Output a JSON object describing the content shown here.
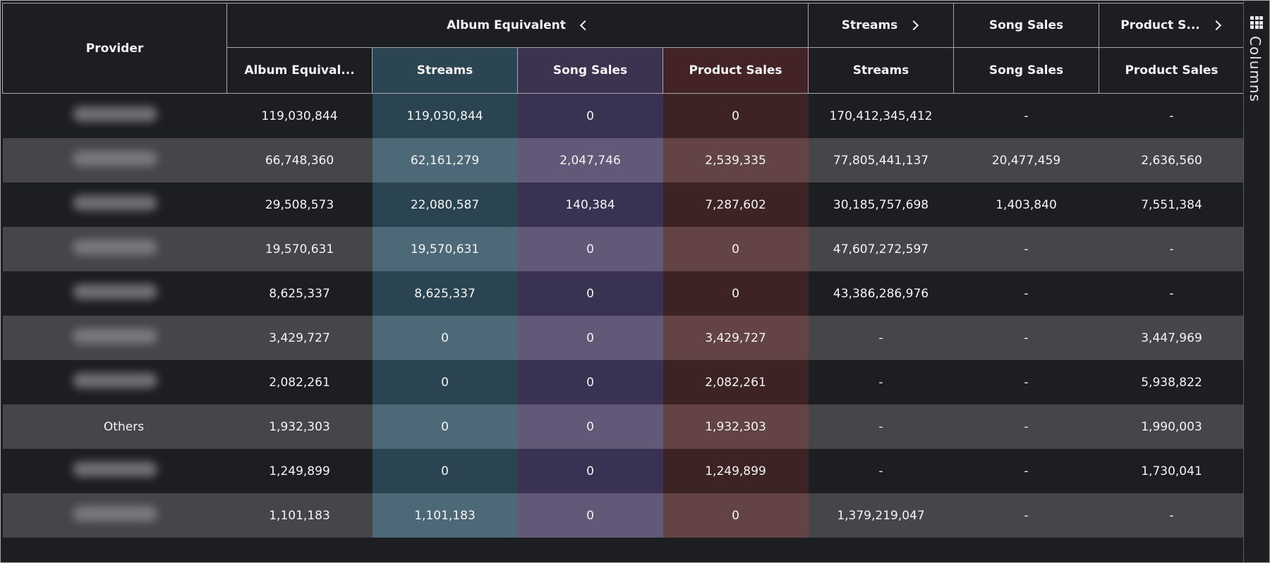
{
  "header": {
    "provider": "Provider",
    "group_album_equivalent": "Album Equivalent",
    "group_streams": "Streams",
    "group_song_sales": "Song Sales",
    "group_product_sales": "Product S...",
    "sub_album_equivalent": "Album Equival...",
    "sub_streams": "Streams",
    "sub_song_sales": "Song Sales",
    "sub_product_sales": "Product Sales",
    "sub_streams_2": "Streams",
    "sub_song_sales_2": "Song Sales",
    "sub_product_sales_2": "Product Sales"
  },
  "side_panel": {
    "label": "Columns",
    "icon": "grid-icon"
  },
  "colors": {
    "streams_col": "#2a4452",
    "song_sales_col": "#393253",
    "product_sales_col": "#3d2324"
  },
  "rows": [
    {
      "provider": "",
      "blurred": true,
      "ae": "119,030,844",
      "ae_streams": "119,030,844",
      "ae_song": "0",
      "ae_product": "0",
      "streams": "170,412,345,412",
      "song": "-",
      "product": "-"
    },
    {
      "provider": "",
      "blurred": true,
      "ae": "66,748,360",
      "ae_streams": "62,161,279",
      "ae_song": "2,047,746",
      "ae_product": "2,539,335",
      "streams": "77,805,441,137",
      "song": "20,477,459",
      "product": "2,636,560"
    },
    {
      "provider": "",
      "blurred": true,
      "ae": "29,508,573",
      "ae_streams": "22,080,587",
      "ae_song": "140,384",
      "ae_product": "7,287,602",
      "streams": "30,185,757,698",
      "song": "1,403,840",
      "product": "7,551,384"
    },
    {
      "provider": "",
      "blurred": true,
      "ae": "19,570,631",
      "ae_streams": "19,570,631",
      "ae_song": "0",
      "ae_product": "0",
      "streams": "47,607,272,597",
      "song": "-",
      "product": "-"
    },
    {
      "provider": "",
      "blurred": true,
      "ae": "8,625,337",
      "ae_streams": "8,625,337",
      "ae_song": "0",
      "ae_product": "0",
      "streams": "43,386,286,976",
      "song": "-",
      "product": "-"
    },
    {
      "provider": "",
      "blurred": true,
      "ae": "3,429,727",
      "ae_streams": "0",
      "ae_song": "0",
      "ae_product": "3,429,727",
      "streams": "-",
      "song": "-",
      "product": "3,447,969"
    },
    {
      "provider": "",
      "blurred": true,
      "ae": "2,082,261",
      "ae_streams": "0",
      "ae_song": "0",
      "ae_product": "2,082,261",
      "streams": "-",
      "song": "-",
      "product": "5,938,822"
    },
    {
      "provider": "Others",
      "blurred": false,
      "ae": "1,932,303",
      "ae_streams": "0",
      "ae_song": "0",
      "ae_product": "1,932,303",
      "streams": "-",
      "song": "-",
      "product": "1,990,003"
    },
    {
      "provider": "",
      "blurred": true,
      "ae": "1,249,899",
      "ae_streams": "0",
      "ae_song": "0",
      "ae_product": "1,249,899",
      "streams": "-",
      "song": "-",
      "product": "1,730,041"
    },
    {
      "provider": "",
      "blurred": true,
      "ae": "1,101,183",
      "ae_streams": "1,101,183",
      "ae_song": "0",
      "ae_product": "0",
      "streams": "1,379,219,047",
      "song": "-",
      "product": "-"
    }
  ]
}
